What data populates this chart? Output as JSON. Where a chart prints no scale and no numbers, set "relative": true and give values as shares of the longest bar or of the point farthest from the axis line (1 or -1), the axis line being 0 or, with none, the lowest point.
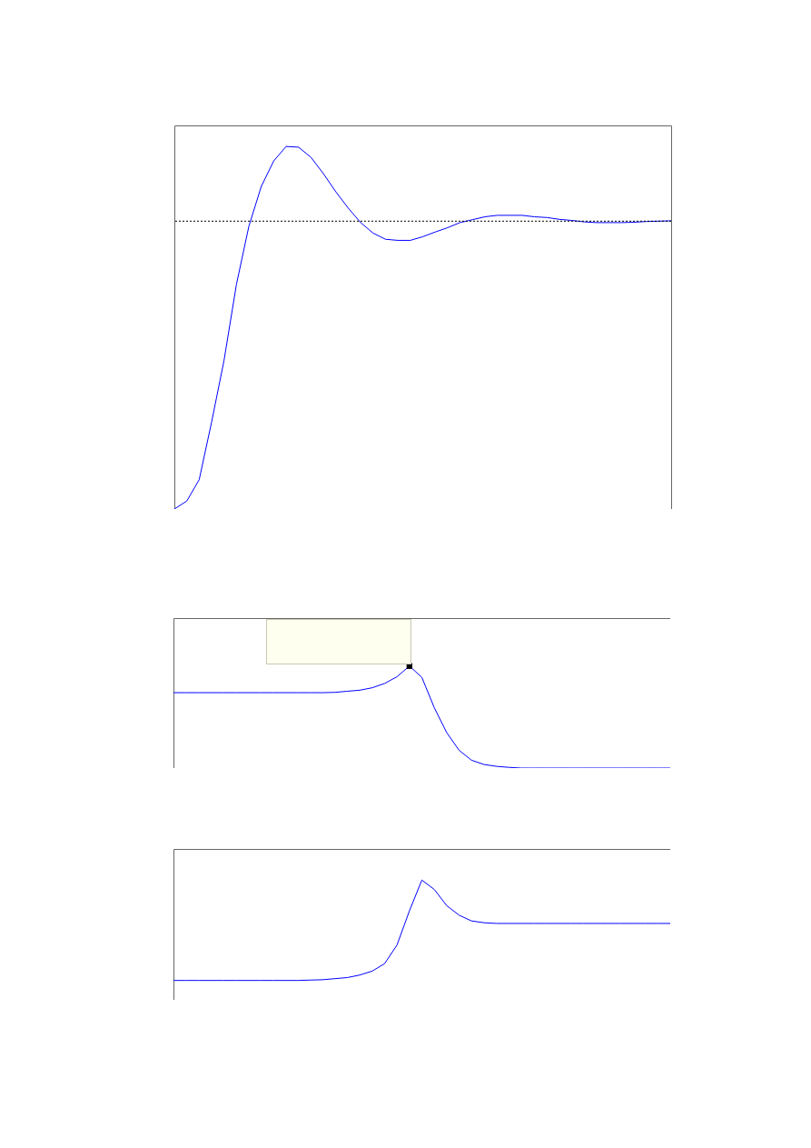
{
  "chart_data": [
    {
      "type": "line",
      "relative": true,
      "categories": [
        null,
        null,
        null,
        null,
        null,
        null,
        null,
        null,
        null,
        null,
        null,
        null,
        null,
        null,
        null,
        null,
        null,
        null,
        null,
        null,
        null,
        null,
        null,
        null,
        null,
        null,
        null,
        null,
        null,
        null,
        null,
        null,
        null,
        null,
        null,
        null,
        null,
        null,
        null,
        null,
        null
      ],
      "series": [
        {
          "color": "#0000ff",
          "values": [
            0,
            0.022,
            0.081,
            0.24,
            0.41,
            0.62,
            0.78,
            0.89,
            0.96,
            1.0,
            0.998,
            0.97,
            0.925,
            0.875,
            0.83,
            0.79,
            0.761,
            0.744,
            0.741,
            0.741,
            0.751,
            0.764,
            0.776,
            0.79,
            0.798,
            0.806,
            0.81,
            0.81,
            0.81,
            0.806,
            0.804,
            0.799,
            0.796,
            0.792,
            0.79,
            0.79,
            0.79,
            0.791,
            0.793,
            0.794,
            0.795
          ]
        }
      ],
      "ref_lines": [
        {
          "axis": "y",
          "value": 0.794,
          "color": "#000000",
          "line_style": "dotted"
        }
      ]
    },
    {
      "type": "line",
      "relative": true,
      "categories": [
        null,
        null,
        null,
        null,
        null,
        null,
        null,
        null,
        null,
        null,
        null,
        null,
        null,
        null,
        null,
        null,
        null,
        null,
        null,
        null,
        null,
        null,
        null,
        null,
        null,
        null,
        null,
        null,
        null,
        null,
        null,
        null,
        null,
        null,
        null,
        null,
        null,
        null,
        null,
        null,
        null
      ],
      "series": [
        {
          "color": "#0000ff",
          "values": [
            0.739,
            0.739,
            0.739,
            0.739,
            0.739,
            0.739,
            0.739,
            0.739,
            0.739,
            0.739,
            0.739,
            0.739,
            0.739,
            0.742,
            0.753,
            0.763,
            0.787,
            0.829,
            0.895,
            1.0,
            0.889,
            0.592,
            0.348,
            0.174,
            0.077,
            0.035,
            0.017,
            0.007,
            0,
            0,
            0,
            0,
            0,
            0,
            0,
            0,
            0,
            0,
            0,
            0,
            0
          ]
        },
        {
          "type": "scatter",
          "color": "#000000",
          "marker": "square",
          "values": [
            null,
            null,
            null,
            null,
            null,
            null,
            null,
            null,
            null,
            null,
            null,
            null,
            null,
            null,
            null,
            null,
            null,
            null,
            null,
            1.0,
            null,
            null,
            null,
            null,
            null,
            null,
            null,
            null,
            null,
            null,
            null,
            null,
            null,
            null,
            null,
            null,
            null,
            null,
            null,
            null,
            null
          ]
        }
      ]
    },
    {
      "type": "line",
      "relative": true,
      "categories": [
        null,
        null,
        null,
        null,
        null,
        null,
        null,
        null,
        null,
        null,
        null,
        null,
        null,
        null,
        null,
        null,
        null,
        null,
        null,
        null,
        null,
        null,
        null,
        null,
        null,
        null,
        null,
        null,
        null,
        null,
        null,
        null,
        null,
        null,
        null,
        null,
        null,
        null,
        null,
        null,
        null
      ],
      "series": [
        {
          "color": "#0000ff",
          "values": [
            0.162,
            0.162,
            0.162,
            0.162,
            0.162,
            0.162,
            0.162,
            0.162,
            0.162,
            0.162,
            0.162,
            0.165,
            0.168,
            0.177,
            0.186,
            0.207,
            0.24,
            0.302,
            0.458,
            0.743,
            1.0,
            0.922,
            0.787,
            0.707,
            0.659,
            0.644,
            0.638,
            0.638,
            0.638,
            0.638,
            0.638,
            0.638,
            0.638,
            0.638,
            0.638,
            0.638,
            0.638,
            0.638,
            0.638,
            0.638,
            0.638
          ]
        }
      ]
    }
  ]
}
